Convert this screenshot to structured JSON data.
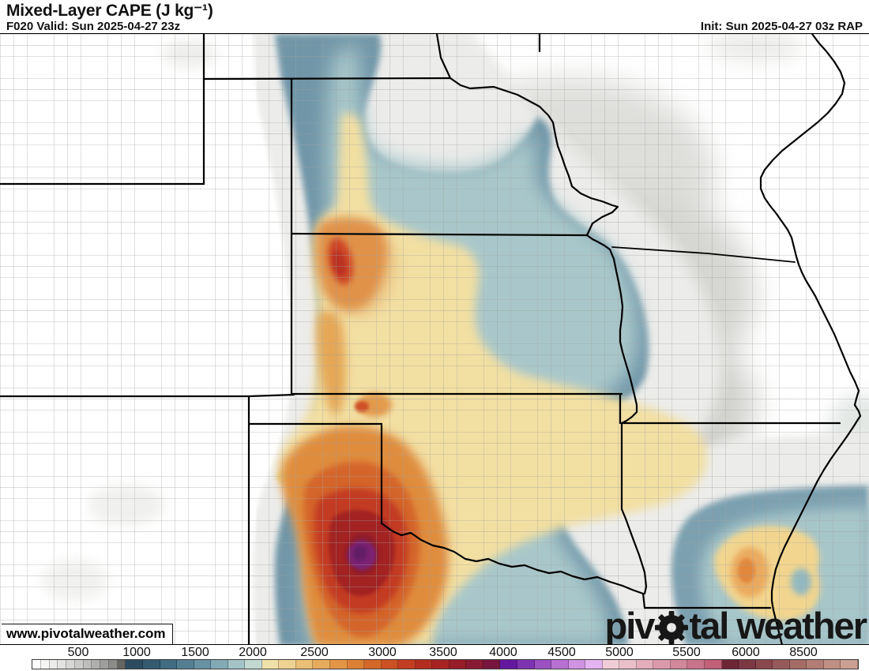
{
  "header": {
    "title": "Mixed-Layer CAPE (J kg⁻¹)",
    "valid": "F020 Valid: Sun 2025-04-27 23z",
    "init": "Init: Sun 2025-04-27 03z RAP"
  },
  "map": {
    "watermark": "www.pivotalweather.com",
    "logo_left": "piv",
    "logo_right": "tal weather"
  },
  "colorbar": {
    "tick_labels": [
      "500",
      "1000",
      "1500",
      "2000",
      "2500",
      "3000",
      "3500",
      "4000",
      "4500",
      "5000",
      "5500",
      "6000",
      "8500"
    ],
    "gray_swatches": [
      "#ffffff",
      "#f5f5f3",
      "#ececea",
      "#e2e2e0",
      "#d7d7d5",
      "#cbcbc9",
      "#bebebc",
      "#afafad",
      "#9e9e9c",
      "#8b8b89",
      "#646461"
    ],
    "color_swatches": [
      "#2c4b61",
      "#345a70",
      "#416c81",
      "#547f93",
      "#6892a3",
      "#83a9b5",
      "#a3c3c6",
      "#c3d8d1",
      "#f0e0aa",
      "#eed292",
      "#eabf76",
      "#e6ab5c",
      "#e29546",
      "#dc8036",
      "#d4682a",
      "#cc5124",
      "#c23d22",
      "#b42e20",
      "#a62322",
      "#971d28",
      "#881a33",
      "#77153e",
      "#6418a0",
      "#7e33b0",
      "#9b51c1",
      "#b870d2",
      "#d093e2",
      "#e4b4f0",
      "#f0cdd6",
      "#eabfca",
      "#e3adbc",
      "#db9aac",
      "#d2879b",
      "#c9748a",
      "#c06079",
      "#6e2636",
      "#7b3742",
      "#89484c",
      "#975a5a",
      "#a56c66",
      "#b27d74",
      "#bf8f84",
      "#cb9f92"
    ]
  },
  "chart_data": {
    "type": "map_legend",
    "title": "Mixed-Layer CAPE",
    "units": "J kg⁻¹",
    "model": "RAP",
    "forecast_hour": "F020",
    "valid_time": "Sun 2025-04-27 23z",
    "init_time": "Sun 2025-04-27 03z",
    "legend_ticks": [
      500,
      1000,
      1500,
      2000,
      2500,
      3000,
      3500,
      4000,
      4500,
      5000,
      5500,
      6000,
      8500
    ]
  }
}
